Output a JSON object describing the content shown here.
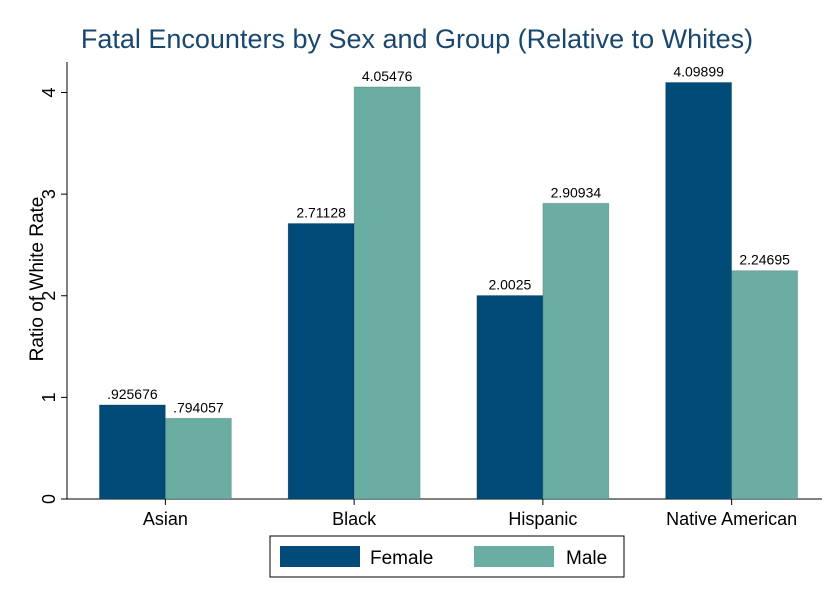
{
  "chart_data": {
    "type": "bar",
    "title": "Fatal Encounters by Sex and Group (Relative to Whites)",
    "ylabel": "Ratio of White Rate",
    "xlabel": "",
    "ylim": [
      0,
      4.3
    ],
    "yticks": [
      0,
      1,
      2,
      3,
      4
    ],
    "grid": false,
    "legend_position": "bottom",
    "categories": [
      "Asian",
      "Black",
      "Hispanic",
      "Native American"
    ],
    "series": [
      {
        "name": "Female",
        "color": "#004b78",
        "values": [
          0.925676,
          2.71128,
          2.0025,
          4.09899
        ],
        "labels": [
          ".925676",
          "2.71128",
          "2.0025",
          "4.09899"
        ]
      },
      {
        "name": "Male",
        "color": "#6aaea3",
        "values": [
          0.794057,
          4.05476,
          2.90934,
          2.24695
        ],
        "labels": [
          ".794057",
          "4.05476",
          "2.90934",
          "2.24695"
        ]
      }
    ]
  }
}
